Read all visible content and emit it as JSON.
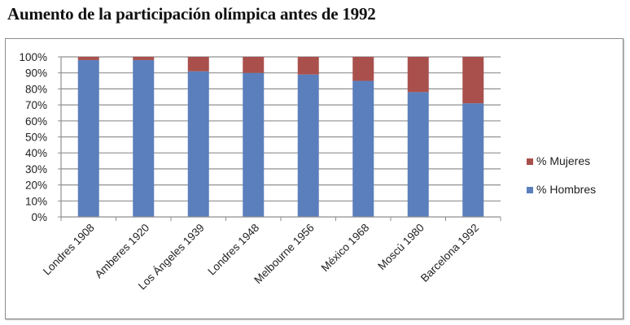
{
  "title": "Aumento de la participación olímpica antes de 1992",
  "colors": {
    "hombres": "#5b7fbc",
    "mujeres": "#a9504d",
    "grid": "#8f8f8f",
    "frame": "#8c8c8c"
  },
  "legend": [
    {
      "label": "% Mujeres",
      "color": "#a9504d"
    },
    {
      "label": "% Hombres",
      "color": "#5b7fbc"
    }
  ],
  "chart_data": {
    "type": "bar",
    "stacked": true,
    "percent_stacked": true,
    "title": "Aumento de la participación olímpica antes de 1992",
    "xlabel": "",
    "ylabel": "",
    "ylim": [
      0,
      100
    ],
    "yticks": [
      "0%",
      "10%",
      "20%",
      "30%",
      "40%",
      "50%",
      "60%",
      "70%",
      "80%",
      "90%",
      "100%"
    ],
    "grid": true,
    "legend_position": "right",
    "categories": [
      "Londres 1908",
      "Amberes 1920",
      "Los Ángeles 1939",
      "Londres 1948",
      "Melbourne 1956",
      "México 1968",
      "Moscú 1980",
      "Barcelona 1992"
    ],
    "series": [
      {
        "name": "% Hombres",
        "color": "#5b7fbc",
        "values": [
          98,
          98,
          91,
          90,
          89,
          85,
          78,
          71
        ]
      },
      {
        "name": "% Mujeres",
        "color": "#a9504d",
        "values": [
          2,
          2,
          9,
          10,
          11,
          15,
          22,
          29
        ]
      }
    ]
  }
}
